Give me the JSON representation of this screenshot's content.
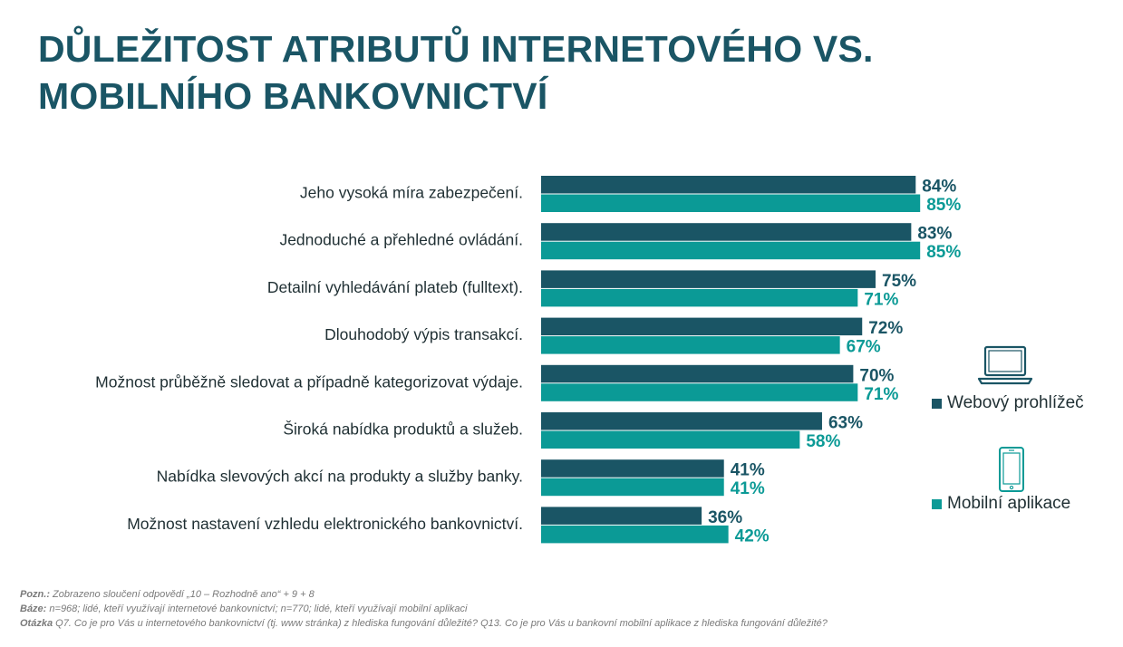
{
  "title": {
    "line1": "DŮLEŽITOST ATRIBUTŮ INTERNETOVÉHO VS.",
    "line2": "MOBILNÍHO BANKOVNICTVÍ"
  },
  "colors": {
    "title": "#1a5565",
    "web": "#1a5565",
    "mobile": "#0b9a96",
    "label": "#1f2f33"
  },
  "chart_data": {
    "type": "bar",
    "orientation": "horizontal",
    "categories": [
      "Jeho vysoká míra zabezpečení.",
      "Jednoduché a přehledné ovládání.",
      "Detailní vyhledávání plateb (fulltext).",
      "Dlouhodobý výpis transakcí.",
      "Možnost průběžně sledovat a případně kategorizovat výdaje.",
      "Široká nabídka produktů a služeb.",
      "Nabídka slevových akcí na produkty a služby banky.",
      "Možnost nastavení vzhledu elektronického bankovnictví."
    ],
    "series": [
      {
        "name": "Webový prohlížeč",
        "color": "#1a5565",
        "values": [
          84,
          83,
          75,
          72,
          70,
          63,
          41,
          36
        ],
        "labels": [
          "84%",
          "83%",
          "75%",
          "72%",
          "70%",
          "63%",
          "41%",
          "36%"
        ]
      },
      {
        "name": "Mobilní aplikace",
        "color": "#0b9a96",
        "values": [
          85,
          85,
          71,
          67,
          71,
          58,
          41,
          42
        ],
        "labels": [
          "85%",
          "85%",
          "71%",
          "67%",
          "71%",
          "58%",
          "41%",
          "42%"
        ]
      }
    ],
    "xlim": [
      0,
      100
    ],
    "unit": "%",
    "grid": false,
    "legend_position": "right"
  },
  "legend": {
    "web_label": "Webový prohlížeč",
    "web_icon": "laptop-icon",
    "mobile_label": "Mobilní aplikace",
    "mobile_icon": "smartphone-icon"
  },
  "footnotes": {
    "note_label": "Pozn.:",
    "note_text": " Zobrazeno sloučení odpovědí „10 – Rozhodně ano“ + 9 + 8",
    "base_label": "Báze:",
    "base_text": " n=968; lidé, kteří využívají internetové bankovnictví; n=770; lidé, kteří využívají mobilní aplikaci",
    "question_label": "Otázka",
    "question_text": " Q7. Co je pro Vás u internetového bankovnictví (tj. www stránka) z hlediska fungování důležité? Q13. Co je pro Vás u bankovní mobilní aplikace z hlediska fungování důležité?"
  }
}
